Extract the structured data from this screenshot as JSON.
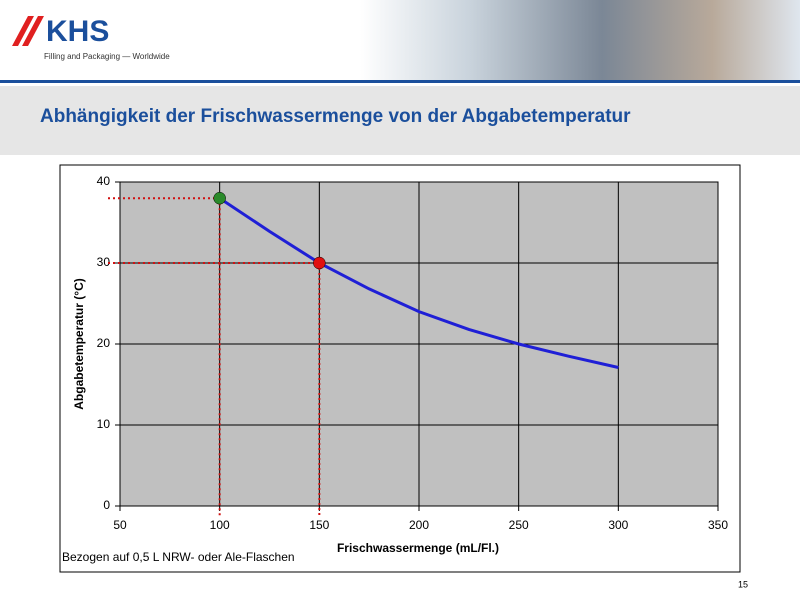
{
  "slide": {
    "logo": "KHS",
    "tagline": "Filling and Packaging — Worldwide",
    "page": 15
  },
  "chart_data": {
    "type": "line",
    "title": "Abhängigkeit der Frischwassermenge von der Abgabetemperatur",
    "x_label": "Frischwassermenge (mL/Fl.)",
    "y_label": "Abgabetemperatur (°C)",
    "annotation": "Bezogen auf 0,5 L NRW- oder Ale-Flaschen",
    "x": [
      100,
      125,
      150,
      175,
      200,
      225,
      250,
      275,
      300
    ],
    "series": [
      {
        "name": "Abgabetemperatur",
        "color": "#1f1fd6",
        "values": [
          38,
          33.9,
          30,
          26.8,
          24,
          21.8,
          20,
          18.5,
          17.1
        ]
      }
    ],
    "markers": [
      {
        "x": 100,
        "y": 38,
        "color": "#2a8a2a"
      },
      {
        "x": 150,
        "y": 30,
        "color": "#e01010"
      }
    ],
    "xlim": [
      50,
      350
    ],
    "xticks": [
      50,
      100,
      150,
      200,
      250,
      300,
      350
    ],
    "ylim": [
      0,
      40
    ],
    "yticks": [
      0,
      10,
      20,
      30,
      40
    ],
    "grid": true
  }
}
